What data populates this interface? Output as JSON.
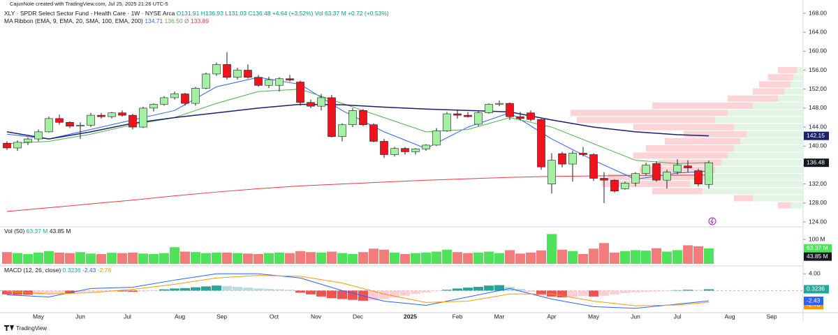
{
  "header": {
    "credit": "CajunNole created with TradingView.com, Jul 25, 2025 21:26 UTC-5",
    "symbol": "XLY · SPDR Select Sector Fund - Health Care · 1W · NYSE Arca",
    "ohlc_text": "O131.91 H136.93 L131.03 C136.48 +4.64 (+3.52%) Vol 63.37 M +0.72 (+0.53%)",
    "ma_title": "MA Ribbon (EMA, 9, EMA, 20, SMA, 100, EMA, 200)",
    "ma_placeholder": "Ø"
  },
  "chart_data": {
    "type": "candlestick",
    "up_color": "#a3f0a3",
    "down_color": "#f0131c",
    "outline": "#1e1e1e",
    "candles": [
      [
        140.6,
        141.0,
        139.2,
        139.6
      ],
      [
        139.6,
        141.2,
        139.0,
        140.8
      ],
      [
        140.8,
        141.8,
        140.2,
        141.5
      ],
      [
        141.5,
        143.5,
        141.0,
        143.0
      ],
      [
        143.0,
        146.2,
        142.8,
        145.8
      ],
      [
        145.8,
        146.6,
        144.5,
        145.0
      ],
      [
        145.0,
        145.2,
        143.8,
        144.2
      ],
      [
        144.2,
        145.0,
        141.5,
        144.4
      ],
      [
        144.4,
        147.0,
        144.0,
        146.5
      ],
      [
        146.5,
        147.0,
        145.8,
        146.2
      ],
      [
        146.2,
        147.2,
        145.8,
        147.0
      ],
      [
        147.0,
        147.5,
        146.2,
        146.5
      ],
      [
        146.5,
        146.8,
        143.5,
        144.0
      ],
      [
        144.0,
        148.3,
        143.8,
        148.0
      ],
      [
        148.0,
        149.0,
        147.3,
        148.8
      ],
      [
        148.8,
        150.5,
        148.5,
        150.2
      ],
      [
        150.2,
        151.5,
        149.8,
        151.0
      ],
      [
        151.0,
        151.2,
        148.5,
        149.0
      ],
      [
        149.0,
        152.5,
        148.5,
        152.2
      ],
      [
        152.2,
        155.5,
        152.0,
        155.2
      ],
      [
        155.2,
        157.6,
        154.8,
        157.2
      ],
      [
        157.2,
        159.8,
        154.0,
        154.5
      ],
      [
        154.5,
        156.5,
        154.0,
        156.0
      ],
      [
        156.0,
        157.2,
        154.2,
        154.5
      ],
      [
        154.5,
        155.0,
        152.5,
        152.8
      ],
      [
        152.8,
        154.6,
        152.2,
        154.0
      ],
      [
        152.8,
        154.5,
        151.5,
        154.2
      ],
      [
        154.2,
        155.0,
        153.6,
        153.9
      ],
      [
        153.5,
        153.8,
        148.5,
        149.2
      ],
      [
        149.2,
        149.8,
        148.0,
        148.4
      ],
      [
        148.4,
        151.0,
        147.5,
        150.2
      ],
      [
        150.2,
        150.8,
        141.8,
        142.0
      ],
      [
        142.0,
        144.8,
        141.0,
        144.5
      ],
      [
        144.5,
        148.0,
        144.0,
        147.5
      ],
      [
        147.5,
        147.8,
        144.2,
        144.5
      ],
      [
        144.5,
        144.8,
        140.8,
        141.0
      ],
      [
        141.0,
        141.5,
        137.5,
        138.2
      ],
      [
        138.2,
        139.8,
        137.8,
        139.5
      ],
      [
        139.5,
        139.8,
        138.2,
        138.8
      ],
      [
        138.8,
        139.6,
        138.2,
        139.4
      ],
      [
        139.4,
        140.4,
        139.0,
        140.2
      ],
      [
        140.2,
        143.8,
        140.0,
        143.2
      ],
      [
        143.2,
        147.2,
        143.0,
        146.8
      ],
      [
        146.8,
        147.6,
        145.8,
        146.5
      ],
      [
        146.5,
        147.2,
        146.0,
        146.2
      ],
      [
        144.6,
        147.4,
        144.2,
        147.0
      ],
      [
        147.0,
        149.0,
        146.8,
        148.8
      ],
      [
        148.8,
        149.6,
        148.4,
        149.0
      ],
      [
        149.0,
        149.2,
        145.5,
        146.2
      ],
      [
        146.2,
        147.2,
        145.4,
        145.8
      ],
      [
        147.0,
        147.5,
        145.2,
        145.6
      ],
      [
        145.6,
        145.8,
        135.0,
        135.6
      ],
      [
        132.0,
        138.5,
        130.0,
        137.0
      ],
      [
        138.4,
        138.8,
        135.5,
        136.2
      ],
      [
        136.2,
        139.0,
        132.5,
        138.5
      ],
      [
        138.5,
        139.8,
        137.8,
        138.2
      ],
      [
        138.2,
        138.5,
        132.6,
        133.2
      ],
      [
        133.2,
        134.5,
        128.0,
        132.8
      ],
      [
        132.8,
        133.0,
        130.2,
        130.5
      ],
      [
        131.0,
        132.5,
        130.8,
        132.2
      ],
      [
        132.2,
        134.5,
        131.5,
        134.2
      ],
      [
        134.2,
        136.5,
        133.8,
        136.0
      ],
      [
        136.3,
        136.8,
        132.5,
        132.8
      ],
      [
        132.8,
        135.0,
        131.0,
        134.5
      ],
      [
        134.5,
        137.2,
        134.0,
        136.0
      ],
      [
        135.8,
        137.0,
        134.5,
        135.4
      ],
      [
        134.8,
        135.2,
        131.5,
        132.0
      ],
      [
        131.91,
        136.93,
        131.03,
        136.48
      ]
    ],
    "ylim": [
      124,
      168
    ],
    "yticks": [
      {
        "value": 124,
        "label": "124.00"
      },
      {
        "value": 128,
        "label": "128.00"
      },
      {
        "value": 132,
        "label": "132.00"
      },
      {
        "value": 136,
        "label": "136.00"
      },
      {
        "value": 140,
        "label": "140.00"
      },
      {
        "value": 144,
        "label": "144.00"
      },
      {
        "value": 148,
        "label": "148.00"
      },
      {
        "value": 152,
        "label": "152.00"
      },
      {
        "value": 156,
        "label": "156.00"
      },
      {
        "value": 160,
        "label": "160.00"
      },
      {
        "value": 164,
        "label": "164.00"
      },
      {
        "value": 168,
        "label": "168.00"
      }
    ],
    "xlabels": [
      "May",
      "Jun",
      "Jul",
      "Aug",
      "Sep",
      "Oct",
      "Nov",
      "Dec",
      "2025",
      "Feb",
      "Mar",
      "Apr",
      "May",
      "Jun",
      "Jul",
      "Aug",
      "Sep"
    ],
    "ma_x": [
      0,
      4,
      8,
      12,
      16,
      20,
      24,
      28,
      32,
      36,
      40,
      44,
      48,
      52,
      56,
      60,
      64,
      67
    ],
    "ma_series": [
      {
        "color": "#2962ff",
        "values": [
          142.5,
          141.5,
          143.5,
          145.5,
          147.5,
          152.5,
          154.5,
          153.0,
          147.5,
          143.0,
          139.5,
          144.0,
          147.0,
          141.5,
          137.0,
          133.0,
          134.3,
          134.71
        ]
      },
      {
        "color": "#4caf50",
        "values": [
          140.5,
          141.0,
          142.5,
          144.5,
          146.0,
          149.0,
          151.5,
          152.0,
          149.0,
          146.0,
          143.0,
          143.5,
          146.0,
          144.0,
          140.5,
          137.0,
          136.3,
          136.5
        ],
        "last_label": "136.50"
      },
      {
        "color": "#f23645",
        "values": [
          126.2,
          127.0,
          127.8,
          128.6,
          129.5,
          130.3,
          131.0,
          131.6,
          132.0,
          132.4,
          132.8,
          133.1,
          133.4,
          133.6,
          133.7,
          133.8,
          133.85,
          133.89
        ]
      },
      {
        "color": "#1a1f6e",
        "values": [
          143.0,
          141.5,
          143.0,
          144.8,
          146.0,
          147.0,
          148.0,
          148.8,
          148.7,
          148.2,
          147.8,
          147.5,
          147.2,
          145.5,
          144.0,
          143.0,
          142.4,
          142.15
        ]
      }
    ],
    "volume_profile": {
      "prices": [
        127.5,
        129,
        130.5,
        132,
        133.5,
        135,
        136.5,
        138,
        139.5,
        141,
        142.5,
        144,
        145.5,
        147,
        148.5,
        150,
        151.5,
        153,
        154.5,
        156
      ],
      "up": [
        10,
        40,
        80,
        90,
        75,
        70,
        65,
        60,
        55,
        50,
        45,
        55,
        70,
        60,
        40,
        20,
        15,
        10,
        8,
        5
      ],
      "down": [
        10,
        15,
        40,
        70,
        80,
        60,
        50,
        75,
        70,
        60,
        50,
        80,
        110,
        125,
        80,
        40,
        25,
        25,
        20,
        15
      ],
      "up_color": "#e2f5e5",
      "down_color": "#fcd3d6"
    },
    "volume": {
      "title": "Vol (50)",
      "unit_color": "#22ab94",
      "values": [
        48,
        44,
        40,
        46,
        52,
        46,
        44,
        48,
        42,
        40,
        45,
        44,
        46,
        42,
        40,
        44,
        68,
        50,
        48,
        44,
        46,
        46,
        44,
        42,
        40,
        44,
        46,
        44,
        52,
        48,
        46,
        50,
        44,
        40,
        48,
        62,
        58,
        46,
        40,
        44,
        46,
        50,
        58,
        48,
        44,
        46,
        50,
        44,
        56,
        42,
        46,
        55,
        122,
        58,
        52,
        40,
        62,
        85,
        46,
        52,
        56,
        54,
        64,
        50,
        56,
        76,
        72,
        63.37
      ],
      "last_label": "63.37 M",
      "ma_value": 43.85,
      "ma_label": "43.85 M",
      "up_color": "#4ee35a",
      "down_color": "#f27c7c",
      "ylim": [
        0,
        143
      ],
      "yticks": [
        {
          "value": 100,
          "label": "100 M"
        }
      ]
    },
    "macd": {
      "title": "MACD (12, 26, close)",
      "hist": [
        -0.9,
        -1.0,
        -1.0,
        -0.9,
        -0.7,
        -0.6,
        -0.6,
        -0.4,
        -0.3,
        -0.2,
        -0.1,
        -0.2,
        -0.3,
        -0.2,
        0.1,
        0.3,
        0.5,
        0.6,
        0.8,
        1.0,
        1.2,
        1.1,
        0.9,
        0.7,
        0.5,
        0.4,
        0.3,
        0.2,
        -0.5,
        -0.9,
        -1.4,
        -1.8,
        -2.0,
        -2.2,
        -2.4,
        -2.3,
        -2.0,
        -1.6,
        -1.2,
        -0.8,
        -0.4,
        -0.1,
        0.2,
        0.5,
        0.7,
        0.9,
        1.2,
        1.3,
        0.9,
        0.4,
        -0.3,
        -1.0,
        -1.4,
        -1.6,
        -1.5,
        -1.3,
        -1.4,
        -1.2,
        -0.9,
        -0.6,
        -0.4,
        -0.3,
        -0.2,
        -0.1,
        0.1,
        0.2,
        0.15,
        0.3236
      ],
      "macd": [
        -1.0,
        -1.5,
        0.5,
        0.8,
        2.5,
        4.0,
        4.0,
        3.0,
        0,
        -2.5,
        -3.5,
        -1.5,
        0.5,
        -2.0,
        -3.8,
        -4.2,
        -3.2,
        -2.43
      ],
      "signal": [
        -0.2,
        -0.8,
        -0.5,
        0.3,
        1.5,
        3.0,
        3.6,
        3.4,
        1.8,
        -0.8,
        -2.8,
        -2.5,
        -0.8,
        -0.8,
        -2.5,
        -3.6,
        -3.4,
        -2.76
      ],
      "macd_color": "#2962ff",
      "signal_color": "#ff9800",
      "pos_color": "#26a69a",
      "pos_fade": "#b2dfdb",
      "neg_color": "#ef5350",
      "neg_fade": "#ffcdd2",
      "baseline": 0,
      "ylim": [
        -4.9,
        5.2
      ],
      "yticks": [
        {
          "value": 4,
          "label": "4.00"
        }
      ]
    }
  },
  "footer": "TradingView"
}
